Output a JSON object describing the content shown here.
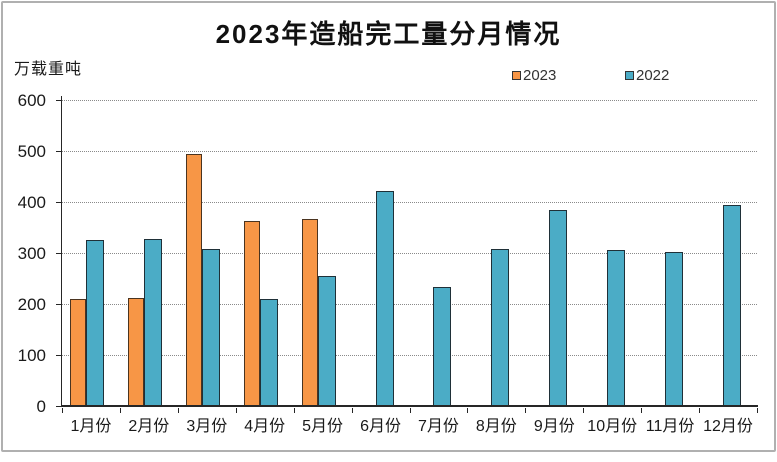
{
  "frame": {
    "border_color": "#b0b0b0",
    "background": "#ffffff"
  },
  "chart_data": {
    "type": "bar",
    "title": "2023年造船完工量分月情况",
    "unit_label": "万载重吨",
    "categories": [
      "1月份",
      "2月份",
      "3月份",
      "4月份",
      "5月份",
      "6月份",
      "7月份",
      "8月份",
      "9月份",
      "10月份",
      "11月份",
      "12月份"
    ],
    "series": [
      {
        "name": "2023",
        "color": "#F79646",
        "border_color": "#4a3420",
        "values": [
          210,
          211,
          494,
          363,
          367,
          null,
          null,
          null,
          null,
          null,
          null,
          null
        ]
      },
      {
        "name": "2022",
        "color": "#4BACC6",
        "border_color": "#1f3038",
        "values": [
          325,
          327,
          307,
          210,
          255,
          421,
          234,
          308,
          385,
          306,
          302,
          394
        ]
      }
    ],
    "ylim": [
      0,
      600
    ],
    "y_ticks": [
      600,
      500,
      400,
      300,
      200,
      100,
      0
    ],
    "grid": "horizontal-dotted",
    "gridline_color": "#8a8a8a",
    "axis_color": "#262626",
    "legend_position": "top-right"
  }
}
